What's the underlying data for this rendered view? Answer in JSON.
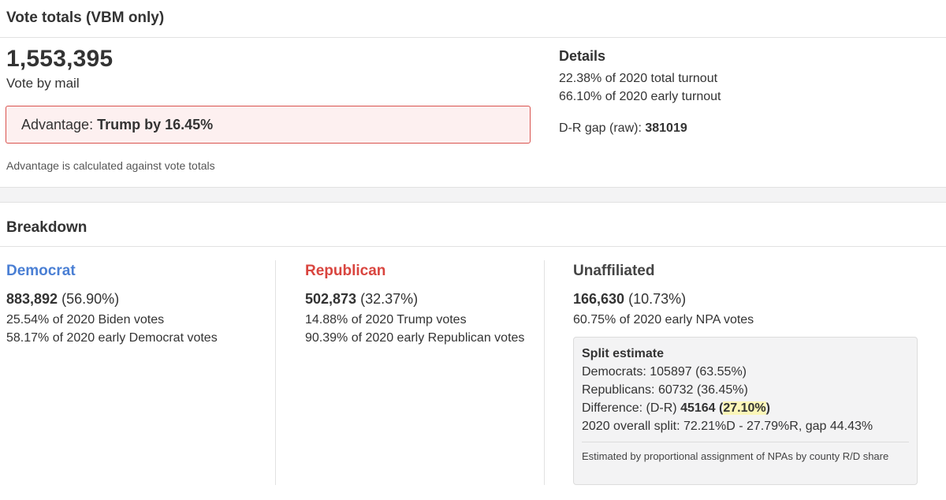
{
  "top": {
    "header": "Vote totals (VBM only)",
    "total": "1,553,395",
    "total_label": "Vote by mail",
    "advantage_prefix": "Advantage: ",
    "advantage_value": "Trump by 16.45%",
    "advantage_note": "Advantage is calculated against vote totals"
  },
  "details": {
    "title": "Details",
    "total_turnout": "22.38% of 2020 total turnout",
    "early_turnout": "66.10% of 2020 early turnout",
    "gap_label": "D-R gap (raw): ",
    "gap_value": "381019"
  },
  "breakdown": {
    "header": "Breakdown",
    "democrat": {
      "name": "Democrat",
      "count": "883,892",
      "pct": " (56.90%)",
      "line1": "25.54% of 2020 Biden votes",
      "line2": "58.17% of 2020 early Democrat votes"
    },
    "republican": {
      "name": "Republican",
      "count": "502,873",
      "pct": " (32.37%)",
      "line1": "14.88% of 2020 Trump votes",
      "line2": "90.39% of 2020 early Republican votes"
    },
    "unaffiliated": {
      "name": "Unaffiliated",
      "count": "166,630",
      "pct": " (10.73%)",
      "line1": "60.75% of 2020 early NPA votes"
    }
  },
  "split": {
    "title": "Split estimate",
    "democrats": "Democrats: 105897 (63.55%)",
    "republicans": "Republicans: 60732 (36.45%)",
    "diff_label": "Difference: (D-R) ",
    "diff_value": "45164",
    "diff_pct_open": " (",
    "diff_pct": "27.10%",
    "diff_pct_close": ")",
    "overall": "2020 overall split: 72.21%D - 27.79%R, gap 44.43%",
    "note": "Estimated by proportional assignment of NPAs by county R/D share"
  },
  "colors": {
    "democrat": "#4a7fd4",
    "republican": "#d9453f",
    "advantage_border": "#d9534f",
    "highlight": "#fbf6b8"
  }
}
